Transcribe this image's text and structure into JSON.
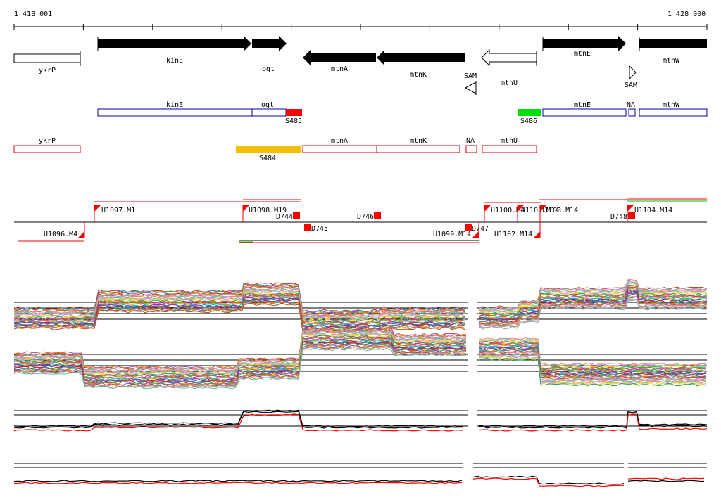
{
  "coords": {
    "start": "1 418 001",
    "end": "1 428 000"
  },
  "genes": [
    {
      "name": "ykrP",
      "strand": "+",
      "fill": "white"
    },
    {
      "name": "kinE",
      "strand": "+",
      "fill": "black"
    },
    {
      "name": "ogt",
      "strand": "+",
      "fill": "black"
    },
    {
      "name": "mtnA",
      "strand": "-",
      "fill": "black"
    },
    {
      "name": "mtnK",
      "strand": "-",
      "fill": "black"
    },
    {
      "name": "mtnU",
      "strand": "-",
      "fill": "white"
    },
    {
      "name": "mtnE",
      "strand": "+",
      "fill": "black"
    },
    {
      "name": "mtnW",
      "strand": "+",
      "fill": "black"
    }
  ],
  "terminators": [
    {
      "label": "SAM",
      "dir": "left"
    },
    {
      "label": "SAM",
      "dir": "right"
    }
  ],
  "blue_track": [
    {
      "label": "kinE"
    },
    {
      "label": "ogt"
    },
    {
      "label": "mtnE"
    },
    {
      "label": "NA"
    },
    {
      "label": "mtnW"
    }
  ],
  "blue_blocks": [
    {
      "label": "S485",
      "color": "#ff0000"
    },
    {
      "label": "S486",
      "color": "#00dd00"
    }
  ],
  "red_track": [
    {
      "label": "ykrP"
    },
    {
      "label": "mtnA"
    },
    {
      "label": "mtnK"
    },
    {
      "label": "NA"
    },
    {
      "label": "mtnU"
    }
  ],
  "red_blocks": [
    {
      "label": "S484",
      "color": "#f5c000"
    }
  ],
  "feature_labels": [
    "U1097.M1",
    "U1098.M19",
    "D744",
    "D746",
    "U1100.M4",
    "U1101.M14",
    "U1103.M14",
    "U1104.M14",
    "D748",
    "U1096.M4",
    "D745",
    "U1099.M14",
    "D747",
    "U1102.M14"
  ],
  "colors": {
    "gene_forward": "#000000",
    "blue_track": "#0000aa",
    "red_track": "#dd0000",
    "feature": "#ff0000"
  }
}
